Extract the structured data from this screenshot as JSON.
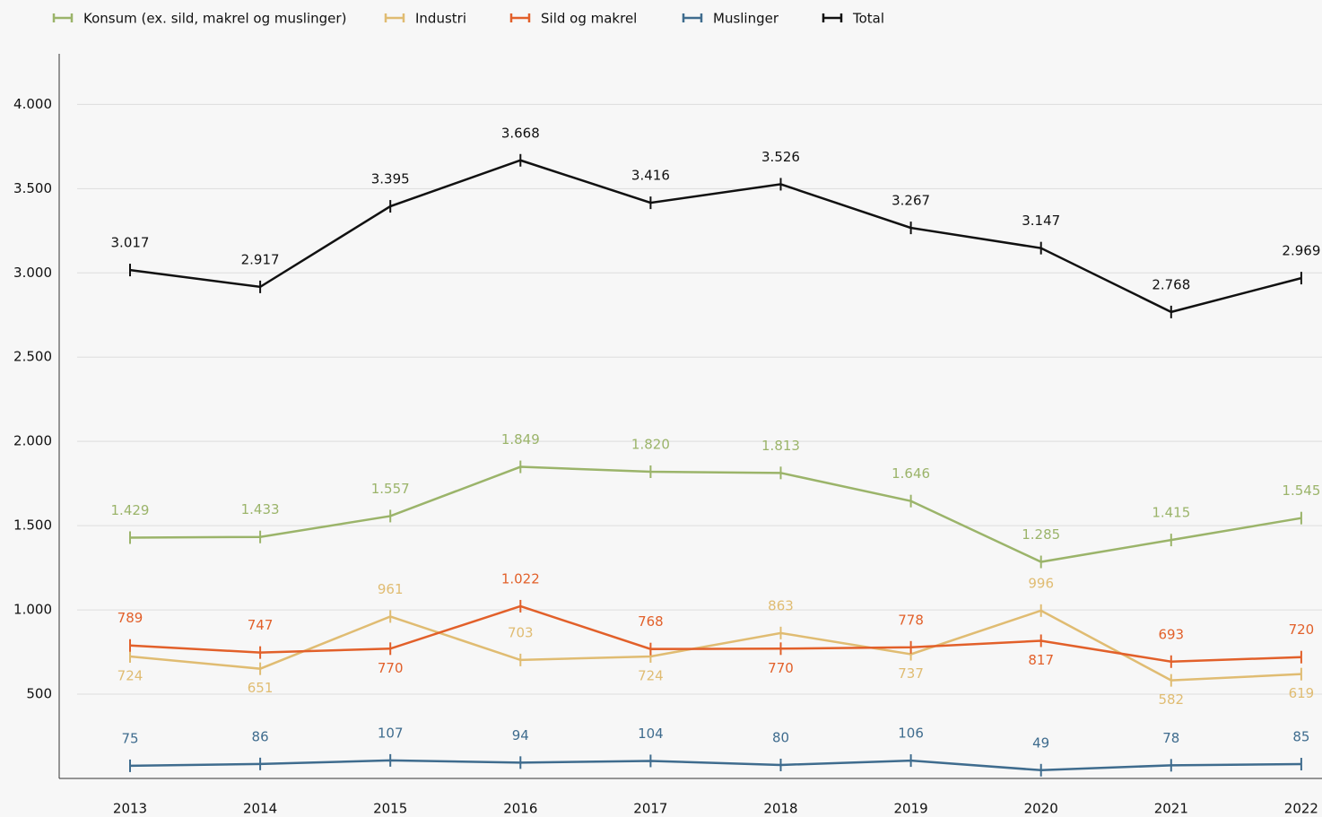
{
  "chart_data": {
    "type": "line",
    "categories": [
      "2013",
      "2014",
      "2015",
      "2016",
      "2017",
      "2018",
      "2019",
      "2020",
      "2021",
      "2022"
    ],
    "series": [
      {
        "name": "Konsum (ex. sild, makrel og muslinger)",
        "color": "#9bb46a",
        "values": [
          1429,
          1433,
          1557,
          1849,
          1820,
          1813,
          1646,
          1285,
          1415,
          1545
        ],
        "value_labels": [
          "1.429",
          "1.433",
          "1.557",
          "1.849",
          "1.820",
          "1.813",
          "1.646",
          "1.285",
          "1.415",
          "1.545"
        ]
      },
      {
        "name": "Industri",
        "color": "#e0bc72",
        "values": [
          724,
          651,
          961,
          703,
          724,
          863,
          737,
          996,
          582,
          619
        ],
        "value_labels": [
          "724",
          "651",
          "961",
          "703",
          "724",
          "863",
          "737",
          "996",
          "582",
          "619"
        ]
      },
      {
        "name": "Sild og makrel",
        "color": "#e2602a",
        "values": [
          789,
          747,
          770,
          1022,
          768,
          770,
          778,
          817,
          693,
          720
        ],
        "value_labels": [
          "789",
          "747",
          "770",
          "1.022",
          "768",
          "770",
          "778",
          "817",
          "693",
          "720"
        ]
      },
      {
        "name": "Muslinger",
        "color": "#3f6c8e",
        "values": [
          75,
          86,
          107,
          94,
          104,
          80,
          106,
          49,
          78,
          85
        ],
        "value_labels": [
          "75",
          "86",
          "107",
          "94",
          "104",
          "80",
          "106",
          "49",
          "78",
          "85"
        ]
      },
      {
        "name": "Total",
        "color": "#111111",
        "values": [
          3017,
          2917,
          3395,
          3668,
          3416,
          3526,
          3267,
          3147,
          2768,
          2969
        ],
        "value_labels": [
          "3.017",
          "2.917",
          "3.395",
          "3.668",
          "3.416",
          "3.526",
          "3.267",
          "3.147",
          "2.768",
          "2.969"
        ]
      }
    ],
    "ylim": [
      0,
      4300
    ],
    "yticks": [
      {
        "value": 500,
        "label": "500"
      },
      {
        "value": 1000,
        "label": "1.000"
      },
      {
        "value": 1500,
        "label": "1.500"
      },
      {
        "value": 2000,
        "label": "2.000"
      },
      {
        "value": 2500,
        "label": "2.500"
      },
      {
        "value": 3000,
        "label": "3.000"
      },
      {
        "value": 3500,
        "label": "3.500"
      },
      {
        "value": 4000,
        "label": "4.000"
      }
    ],
    "grid": true
  }
}
